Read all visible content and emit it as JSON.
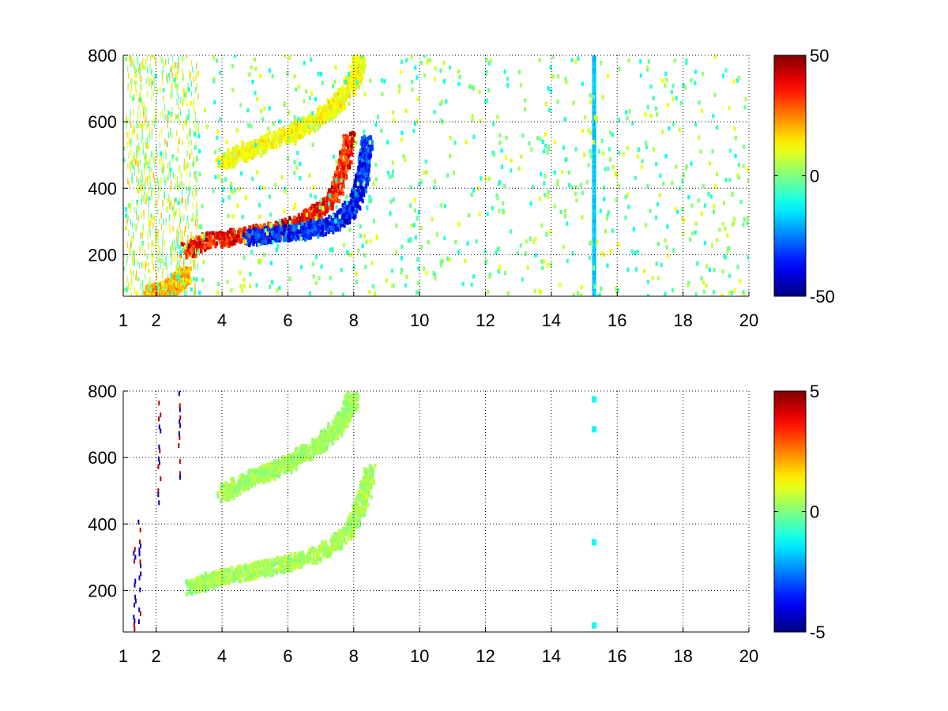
{
  "chart_data": [
    {
      "type": "heatmap",
      "title": "",
      "xlabel": "",
      "ylabel": "",
      "xlim": [
        1,
        20
      ],
      "ylim": [
        75,
        800
      ],
      "x_ticks": [
        1,
        2,
        4,
        6,
        8,
        10,
        12,
        14,
        16,
        18,
        20
      ],
      "x_tick_labels": [
        "1",
        "2",
        "4",
        "6",
        "8",
        "10",
        "12",
        "14",
        "16",
        "18",
        "20"
      ],
      "y_ticks": [
        200,
        400,
        600,
        800
      ],
      "y_tick_labels": [
        "200",
        "400",
        "600",
        "800"
      ],
      "grid": true,
      "grid_style": "dotted",
      "colormap": "jet",
      "clim": [
        -50,
        50
      ],
      "colorbar_ticks": [
        50,
        0,
        -50
      ],
      "colorbar_tick_labels": [
        "50",
        "0",
        "-50"
      ],
      "background_value": "NaN (white)",
      "features": [
        {
          "description": "lower curved band, positive (red) side",
          "x": [
            2.9,
            3.5,
            4.5,
            5.5,
            6.5,
            7.2,
            7.6,
            7.9
          ],
          "y": [
            210,
            240,
            255,
            270,
            300,
            350,
            420,
            560
          ],
          "value": 45
        },
        {
          "description": "lower curved band, negative (blue) side",
          "x": [
            4.8,
            5.5,
            6.5,
            7.3,
            7.8,
            8.1,
            8.3,
            8.4
          ],
          "y": [
            250,
            260,
            270,
            290,
            320,
            370,
            450,
            540
          ],
          "value": -42
        },
        {
          "description": "upper weak band",
          "x": [
            4.0,
            5.0,
            6.0,
            6.8,
            7.5,
            8.0,
            8.2
          ],
          "y": [
            480,
            520,
            560,
            600,
            650,
            720,
            790
          ],
          "value": 15
        },
        {
          "description": "low-velocity tail",
          "x": [
            1.8,
            2.2,
            2.6,
            2.9
          ],
          "y": [
            80,
            90,
            110,
            140
          ],
          "value": 25
        },
        {
          "description": "vertical stripe",
          "x": [
            15.3
          ],
          "y": [
            75,
            800
          ],
          "value": -18
        }
      ]
    },
    {
      "type": "heatmap",
      "title": "",
      "xlabel": "",
      "ylabel": "",
      "xlim": [
        1,
        20
      ],
      "ylim": [
        75,
        800
      ],
      "x_ticks": [
        1,
        2,
        4,
        6,
        8,
        10,
        12,
        14,
        16,
        18,
        20
      ],
      "x_tick_labels": [
        "1",
        "2",
        "4",
        "6",
        "8",
        "10",
        "12",
        "14",
        "16",
        "18",
        "20"
      ],
      "y_ticks": [
        200,
        400,
        600,
        800
      ],
      "y_tick_labels": [
        "200",
        "400",
        "600",
        "800"
      ],
      "grid": true,
      "grid_style": "dotted",
      "colormap": "jet",
      "clim": [
        -5,
        5
      ],
      "colorbar_ticks": [
        5,
        0,
        -5
      ],
      "colorbar_tick_labels": [
        "5",
        "0",
        "-5"
      ],
      "background_value": "NaN (white)",
      "features": [
        {
          "description": "lower curved band, near-zero (green)",
          "x": [
            3.0,
            4.0,
            5.0,
            6.0,
            7.0,
            7.8,
            8.3,
            8.5
          ],
          "y": [
            210,
            240,
            260,
            280,
            310,
            370,
            470,
            560
          ],
          "value": 0.5
        },
        {
          "description": "upper weak band",
          "x": [
            4.0,
            5.0,
            6.0,
            7.0,
            7.6,
            8.0
          ],
          "y": [
            490,
            540,
            580,
            640,
            700,
            780
          ],
          "value": 0.4
        },
        {
          "description": "outlier streaks near x=1.3-2.8",
          "x": [
            1.35,
            1.5,
            2.1,
            2.7
          ],
          "y": [
            180,
            250,
            620,
            660
          ],
          "value": 4.5
        },
        {
          "description": "isolated points at x=15.3",
          "x": [
            15.3,
            15.3,
            15.3,
            15.3
          ],
          "y": [
            775,
            685,
            345,
            95
          ],
          "value": -1.2
        }
      ]
    }
  ]
}
